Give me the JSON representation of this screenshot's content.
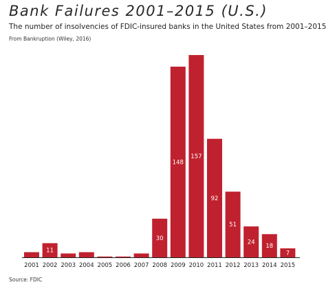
{
  "chart_data": {
    "type": "bar",
    "title": "Bank Failures 2001–2015 (U.S.)",
    "subtitle": "The number of insolvencies of FDIC-insured banks in the United States from 2001–2015.",
    "note": "From Bankruption (Wiley, 2016)",
    "source": "Source: FDIC",
    "categories": [
      "2001",
      "2002",
      "2003",
      "2004",
      "2005",
      "2006",
      "2007",
      "2008",
      "2009",
      "2010",
      "2011",
      "2012",
      "2013",
      "2014",
      "2015"
    ],
    "values": [
      4,
      11,
      3,
      4,
      0,
      0,
      3,
      30,
      148,
      157,
      92,
      51,
      24,
      18,
      7
    ],
    "data_labels": [
      "",
      "11",
      "",
      "",
      "",
      "",
      "",
      "30",
      "148",
      "157",
      "92",
      "51",
      "24",
      "18",
      "7"
    ],
    "xlabel": "",
    "ylabel": "",
    "ylim": [
      0,
      157
    ],
    "grid": false,
    "bar_color": "#c0212e",
    "label_color": "#ffffff",
    "axis_color": "#222222"
  }
}
